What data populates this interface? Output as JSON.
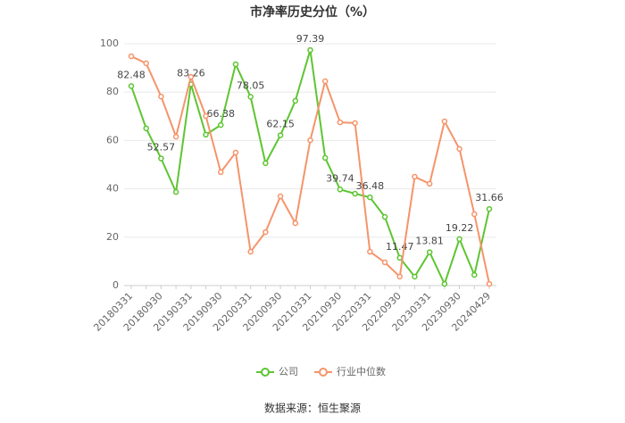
{
  "chart_data": {
    "type": "line",
    "title": "市净率历史分位（%）",
    "categories": [
      "20180331",
      null,
      "20180930",
      null,
      "20190331",
      null,
      "20190930",
      null,
      "20200331",
      null,
      "20200930",
      null,
      "20210331",
      null,
      "20210930",
      null,
      "20220331",
      null,
      "20220930",
      null,
      "20230331",
      null,
      "20230930",
      null,
      "20240429"
    ],
    "series": [
      {
        "name": "公司",
        "color": "#5ec532",
        "values": [
          82.48,
          65,
          52.57,
          38.7,
          83.26,
          62.4,
          66.38,
          91.5,
          78.05,
          50.6,
          62.15,
          76.4,
          97.39,
          52.8,
          39.74,
          38,
          36.48,
          28.4,
          11.47,
          3.7,
          13.81,
          0.7,
          19.22,
          4.4,
          31.66
        ],
        "value_labels": [
          "82.48",
          null,
          "52.57",
          null,
          "83.26",
          null,
          "66.38",
          null,
          "78.05",
          null,
          "62.15",
          null,
          "97.39",
          null,
          "39.74",
          null,
          "36.48",
          null,
          "11.47",
          null,
          "13.81",
          null,
          "19.22",
          null,
          "31.66"
        ]
      },
      {
        "name": "行业中位数",
        "color": "#f5946a",
        "values": [
          94.8,
          91.9,
          78.2,
          61.6,
          86.3,
          70.1,
          46.9,
          55,
          14,
          22.1,
          36.9,
          25.8,
          60.1,
          84.5,
          67.5,
          67.2,
          14,
          9.6,
          3.7,
          45,
          42.1,
          67.9,
          56.5,
          29.5,
          0.7
        ]
      }
    ],
    "ylim": [
      0,
      100
    ],
    "yticks": [
      0,
      20,
      40,
      60,
      80,
      100
    ],
    "grid": true,
    "source": "数据来源：恒生聚源"
  }
}
